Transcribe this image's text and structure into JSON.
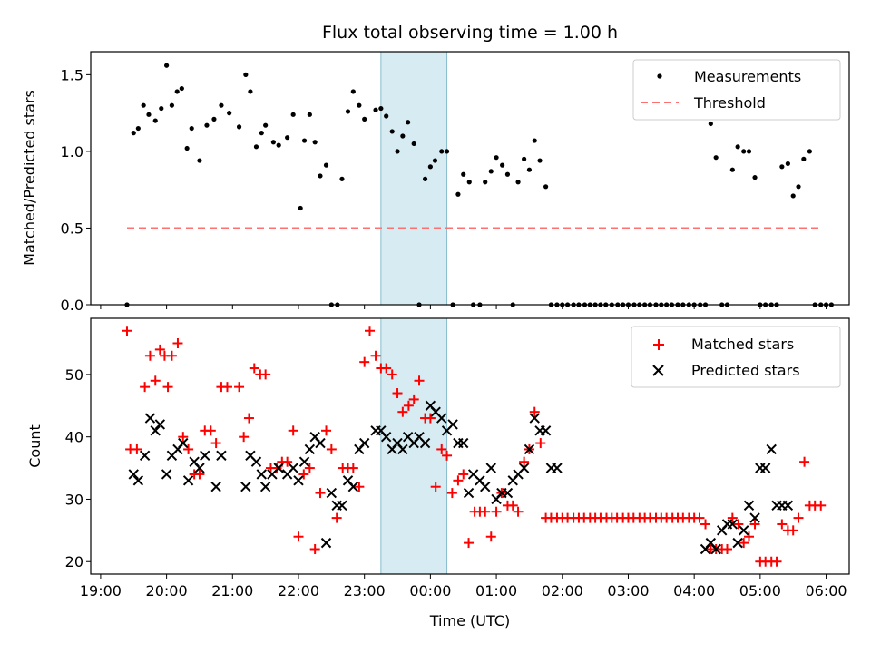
{
  "chart_data": [
    {
      "type": "scatter",
      "title": "Flux total observing time = 1.00 h",
      "ylabel": "Matched/Predicted stars",
      "xlabel": "",
      "xlim": [
        -0.15,
        11.35
      ],
      "ylim": [
        0,
        1.65
      ],
      "yticks": [
        0.0,
        0.5,
        1.0,
        1.5
      ],
      "ytick_labels": [
        "0.0",
        "0.5",
        "1.0",
        "1.5"
      ],
      "highlight_span": [
        4.25,
        5.25
      ],
      "legend_position": "upper right",
      "colors": {
        "measurements": "#000000",
        "threshold": "#ff7070",
        "span": "#add8e6"
      },
      "series": [
        {
          "name": "Measurements",
          "marker": "dot",
          "x": [
            0.4,
            0.5,
            0.57,
            0.65,
            0.73,
            0.83,
            0.92,
            1.0,
            1.08,
            1.16,
            1.23,
            1.31,
            1.38,
            1.5,
            1.61,
            1.72,
            1.83,
            1.95,
            2.1,
            2.2,
            2.27,
            2.36,
            2.44,
            2.5,
            2.62,
            2.7,
            2.83,
            2.92,
            3.03,
            3.09,
            3.17,
            3.25,
            3.33,
            3.42,
            3.5,
            3.59,
            3.66,
            3.75,
            3.83,
            3.92,
            4.0,
            4.17,
            4.25,
            4.33,
            4.42,
            4.5,
            4.58,
            4.66,
            4.75,
            4.83,
            4.92,
            5.0,
            5.07,
            5.17,
            5.25,
            5.34,
            5.42,
            5.5,
            5.59,
            5.65,
            5.75,
            5.83,
            5.92,
            6.0,
            6.09,
            6.17,
            6.25,
            6.33,
            6.42,
            6.5,
            6.58,
            6.66,
            6.75,
            6.83,
            6.92,
            7.0,
            7.08,
            7.17,
            7.25,
            7.34,
            7.42,
            7.5,
            7.58,
            7.66,
            7.75,
            7.84,
            7.92,
            8.0,
            8.09,
            8.17,
            8.25,
            8.33,
            8.42,
            8.5,
            8.58,
            8.66,
            8.75,
            8.83,
            8.92,
            9.0,
            9.09,
            9.17,
            9.25,
            9.33,
            9.42,
            9.5,
            9.58,
            9.66,
            9.75,
            9.83,
            9.92,
            10.0,
            10.08,
            10.17,
            10.25,
            10.33,
            10.42,
            10.5,
            10.58,
            10.66,
            10.75,
            10.83,
            10.92,
            11.0,
            11.08
          ],
          "y": [
            0.0,
            1.12,
            1.15,
            1.3,
            1.24,
            1.2,
            1.28,
            1.56,
            1.3,
            1.39,
            1.41,
            1.02,
            1.15,
            0.94,
            1.17,
            1.21,
            1.3,
            1.25,
            1.16,
            1.5,
            1.39,
            1.03,
            1.12,
            1.17,
            1.06,
            1.04,
            1.09,
            1.24,
            0.63,
            1.07,
            1.24,
            1.06,
            0.84,
            0.91,
            0.0,
            0.0,
            0.82,
            1.26,
            1.39,
            1.3,
            1.21,
            1.27,
            1.28,
            1.23,
            1.13,
            1.0,
            1.1,
            1.19,
            1.05,
            0.0,
            0.82,
            0.9,
            0.94,
            1.0,
            1.0,
            0.0,
            0.72,
            0.85,
            0.8,
            0.0,
            0.0,
            0.8,
            0.87,
            0.96,
            0.91,
            0.85,
            0.0,
            0.8,
            0.95,
            0.88,
            1.07,
            0.94,
            0.77,
            0.0,
            0.0,
            0.0,
            0.0,
            0.0,
            0.0,
            0.0,
            0.0,
            0.0,
            0.0,
            0.0,
            0.0,
            0.0,
            0.0,
            0.0,
            0.0,
            0.0,
            0.0,
            0.0,
            0.0,
            0.0,
            0.0,
            0.0,
            0.0,
            0.0,
            0.0,
            0.0,
            0.0,
            0.0,
            1.18,
            0.96,
            0.0,
            0.0,
            0.88,
            1.03,
            1.0,
            1.0,
            0.83,
            0.0,
            0.0,
            0.0,
            0.0,
            0.9,
            0.92,
            0.71,
            0.77,
            0.95,
            1.0,
            0.0,
            0.0,
            0.0,
            0.0
          ]
        },
        {
          "name": "Threshold",
          "marker": "dashed-line",
          "x": [
            0.4,
            10.9
          ],
          "y": [
            0.5,
            0.5
          ]
        }
      ]
    },
    {
      "type": "scatter",
      "title": "",
      "ylabel": "Count",
      "xlabel": "Time (UTC)",
      "xlim": [
        -0.15,
        11.35
      ],
      "ylim": [
        18,
        59
      ],
      "yticks": [
        20,
        30,
        40,
        50
      ],
      "ytick_labels": [
        "20",
        "30",
        "40",
        "50"
      ],
      "xticks": [
        0,
        1,
        2,
        3,
        4,
        5,
        6,
        7,
        8,
        9,
        10,
        11
      ],
      "xtick_labels": [
        "19:00",
        "20:00",
        "21:00",
        "22:00",
        "23:00",
        "00:00",
        "01:00",
        "02:00",
        "03:00",
        "04:00",
        "05:00",
        "06:00"
      ],
      "highlight_span": [
        4.25,
        5.25
      ],
      "legend_position": "upper right",
      "colors": {
        "matched": "#ff0000",
        "predicted": "#000000",
        "span": "#add8e6"
      },
      "series": [
        {
          "name": "Matched stars",
          "marker": "plus",
          "x": [
            0.4,
            0.45,
            0.55,
            0.67,
            0.75,
            0.83,
            0.9,
            0.97,
            1.02,
            1.08,
            1.17,
            1.25,
            1.33,
            1.42,
            1.5,
            1.58,
            1.67,
            1.75,
            1.83,
            1.92,
            2.1,
            2.17,
            2.25,
            2.33,
            2.42,
            2.5,
            2.58,
            2.67,
            2.75,
            2.83,
            2.92,
            3.0,
            3.08,
            3.17,
            3.25,
            3.33,
            3.42,
            3.5,
            3.58,
            3.67,
            3.75,
            3.83,
            3.92,
            4.0,
            4.08,
            4.17,
            4.25,
            4.33,
            4.42,
            4.5,
            4.58,
            4.67,
            4.75,
            4.83,
            4.92,
            5.0,
            5.08,
            5.17,
            5.25,
            5.33,
            5.42,
            5.5,
            5.58,
            5.67,
            5.75,
            5.83,
            5.92,
            6.0,
            6.08,
            6.17,
            6.25,
            6.33,
            6.42,
            6.5,
            6.58,
            6.67,
            6.75,
            6.83,
            6.92,
            7.0,
            7.08,
            7.17,
            7.25,
            7.33,
            7.42,
            7.5,
            7.58,
            7.67,
            7.75,
            7.83,
            7.92,
            8.0,
            8.08,
            8.17,
            8.25,
            8.33,
            8.42,
            8.5,
            8.58,
            8.67,
            8.75,
            8.83,
            8.92,
            9.0,
            9.08,
            9.17,
            9.25,
            9.33,
            9.42,
            9.5,
            9.58,
            9.67,
            9.75,
            9.83,
            9.92,
            10.0,
            10.08,
            10.17,
            10.25,
            10.33,
            10.42,
            10.5,
            10.58,
            10.67,
            10.75,
            10.83,
            10.92
          ],
          "y": [
            57,
            38,
            38,
            48,
            53,
            49,
            54,
            53,
            48,
            53,
            55,
            40,
            38,
            34,
            34,
            41,
            41,
            39,
            48,
            48,
            48,
            40,
            43,
            51,
            50,
            50,
            35,
            35,
            36,
            36,
            41,
            24,
            34,
            35,
            22,
            31,
            41,
            38,
            27,
            35,
            35,
            35,
            32,
            52,
            57,
            53,
            51,
            51,
            50,
            47,
            44,
            45,
            46,
            49,
            43,
            43,
            32,
            38,
            37,
            31,
            33,
            34,
            23,
            28,
            28,
            28,
            24,
            28,
            31,
            29,
            29,
            28,
            36,
            38,
            44,
            39,
            27,
            27,
            27,
            27,
            27,
            27,
            27,
            27,
            27,
            27,
            27,
            27,
            27,
            27,
            27,
            27,
            27,
            27,
            27,
            27,
            27,
            27,
            27,
            27,
            27,
            27,
            27,
            27,
            27,
            26,
            22,
            22,
            22,
            22,
            27,
            26,
            23,
            24,
            26,
            20,
            20,
            20,
            20,
            26,
            25,
            25,
            27,
            36,
            29,
            29,
            29
          ]
        },
        {
          "name": "Predicted stars",
          "marker": "x",
          "x": [
            0.5,
            0.57,
            0.67,
            0.75,
            0.83,
            0.9,
            1.0,
            1.08,
            1.17,
            1.25,
            1.33,
            1.42,
            1.5,
            1.58,
            1.75,
            1.83,
            2.2,
            2.27,
            2.36,
            2.44,
            2.5,
            2.6,
            2.7,
            2.83,
            2.92,
            3.0,
            3.09,
            3.17,
            3.25,
            3.33,
            3.42,
            3.5,
            3.58,
            3.66,
            3.75,
            3.83,
            3.92,
            4.0,
            4.17,
            4.25,
            4.33,
            4.42,
            4.5,
            4.58,
            4.66,
            4.75,
            4.83,
            4.92,
            5.0,
            5.08,
            5.17,
            5.25,
            5.34,
            5.42,
            5.5,
            5.58,
            5.65,
            5.75,
            5.83,
            5.92,
            6.0,
            6.08,
            6.17,
            6.25,
            6.33,
            6.42,
            6.5,
            6.58,
            6.66,
            6.75,
            6.83,
            6.92,
            9.17,
            9.25,
            9.33,
            9.42,
            9.5,
            9.58,
            9.66,
            9.75,
            9.83,
            9.92,
            10.0,
            10.08,
            10.17,
            10.25,
            10.33,
            10.42
          ],
          "y": [
            34,
            33,
            37,
            43,
            41,
            42,
            34,
            37,
            38,
            39,
            33,
            36,
            35,
            37,
            32,
            37,
            32,
            37,
            36,
            34,
            32,
            34,
            35,
            34,
            35,
            33,
            36,
            38,
            40,
            39,
            23,
            31,
            29,
            29,
            33,
            32,
            38,
            39,
            41,
            41,
            40,
            38,
            39,
            38,
            40,
            39,
            40,
            39,
            45,
            44,
            43,
            41,
            42,
            39,
            39,
            31,
            34,
            33,
            32,
            35,
            30,
            31,
            31,
            33,
            34,
            35,
            38,
            43,
            41,
            41,
            35,
            35,
            22,
            23,
            22,
            25,
            26,
            26,
            23,
            25,
            29,
            27,
            35,
            35,
            38,
            29,
            29,
            29
          ]
        }
      ]
    }
  ]
}
